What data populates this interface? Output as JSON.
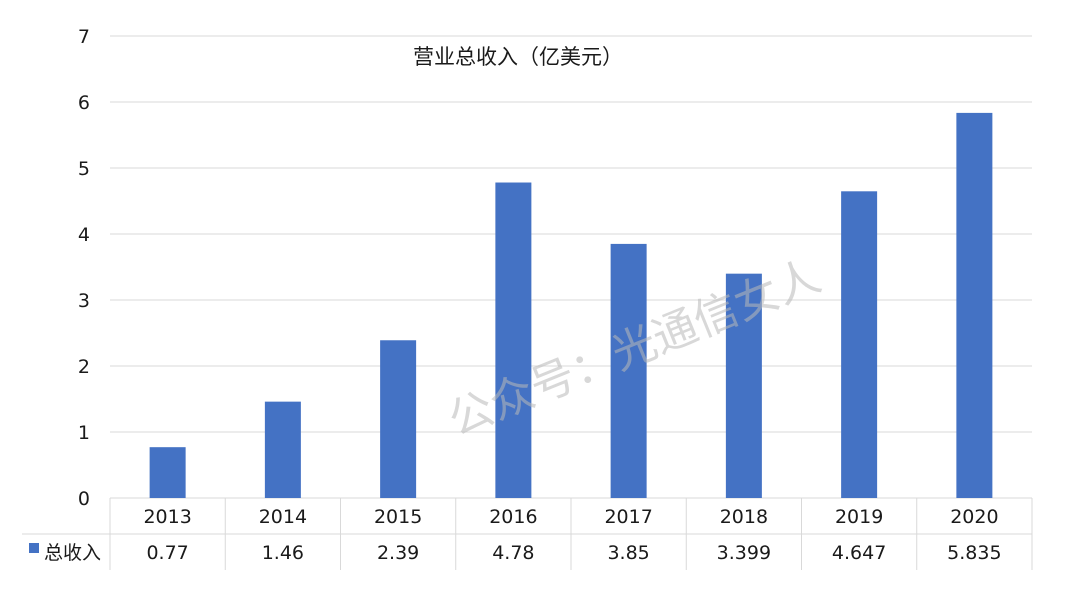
{
  "chart_data": {
    "type": "bar",
    "title": "营业总收入（亿美元）",
    "categories": [
      "2013",
      "2014",
      "2015",
      "2016",
      "2017",
      "2018",
      "2019",
      "2020"
    ],
    "series": [
      {
        "name": "总收入",
        "values": [
          0.77,
          1.46,
          2.39,
          4.78,
          3.85,
          3.399,
          4.647,
          5.835
        ]
      }
    ],
    "value_labels": [
      "0.77",
      "1.46",
      "2.39",
      "4.78",
      "3.85",
      "3.399",
      "4.647",
      "5.835"
    ],
    "ylim": [
      0,
      7
    ],
    "yticks": [
      0,
      1,
      2,
      3,
      4,
      5,
      6,
      7
    ],
    "grid": true,
    "data_table": true,
    "legend": "data-table"
  },
  "colors": {
    "bar": "#4472C4",
    "grid": "#d9d9d9",
    "text": "#1a1a1a"
  },
  "watermark": "公众号：光通信女人"
}
